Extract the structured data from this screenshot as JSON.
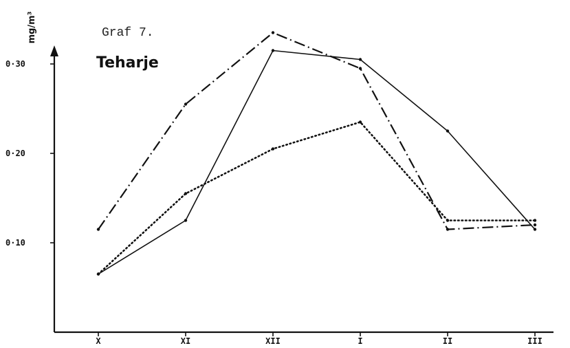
{
  "chart_data": {
    "type": "line",
    "title": "Graf 7.",
    "subtitle": "Teharje",
    "ylabel": "mg/m³",
    "categories": [
      "X",
      "XI",
      "XII",
      "I",
      "II",
      "III"
    ],
    "yticks": [
      {
        "value": 0.3,
        "label": "0·30"
      },
      {
        "value": 0.2,
        "label": "0·20"
      },
      {
        "value": 0.1,
        "label": "0·10"
      }
    ],
    "ylim": [
      0.0,
      0.335
    ],
    "series": [
      {
        "style": "dash-dot",
        "values": [
          0.115,
          0.255,
          0.335,
          0.295,
          0.115,
          0.12
        ]
      },
      {
        "style": "solid",
        "values": [
          0.065,
          0.125,
          0.315,
          0.305,
          0.225,
          0.115
        ]
      },
      {
        "style": "dotted",
        "values": [
          0.065,
          0.155,
          0.205,
          0.235,
          0.125,
          0.125
        ]
      }
    ]
  }
}
